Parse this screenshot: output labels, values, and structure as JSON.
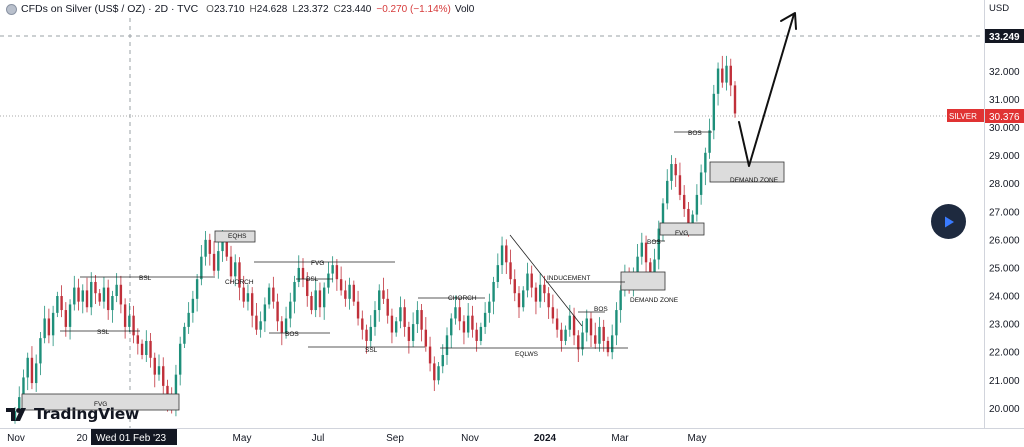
{
  "header": {
    "symbol": "CFDs on Silver (US$ / OZ) · 2D · TVC",
    "open_label": "O",
    "open": "23.710",
    "high_label": "H",
    "high": "24.628",
    "low_label": "L",
    "low": "23.372",
    "close_label": "C",
    "close": "23.440",
    "change": "−0.270 (−1.14%)",
    "volume": "Vol0"
  },
  "price_axis": {
    "currency": "USD",
    "crosshair_price": "33.249",
    "symbol_tag": "SILVER",
    "last_price": "30.376"
  },
  "time_axis": {
    "crosshair_label": "Wed 01 Feb '23"
  },
  "logo": {
    "text": "TradingView"
  },
  "colors": {
    "up": "#1e8f7a",
    "down": "#c0303a",
    "zone_fill": "#dcdcdc",
    "zone_stroke": "#333333",
    "last_price": "#e03333"
  },
  "chart_data": {
    "type": "candlestick",
    "ylim": [
      19.3,
      33.9
    ],
    "yticks": [
      20,
      21,
      22,
      23,
      24,
      25,
      26,
      27,
      28,
      29,
      30,
      31,
      32
    ],
    "x_ticks": [
      "Nov",
      "20",
      "May",
      "Jul",
      "Sep",
      "Nov",
      "2024",
      "Mar",
      "May"
    ],
    "closes": [
      19.9,
      20.4,
      21.1,
      21.8,
      20.9,
      21.6,
      22.5,
      23.2,
      22.6,
      23.4,
      24.0,
      23.5,
      22.9,
      23.7,
      24.3,
      23.8,
      24.2,
      23.6,
      24.5,
      24.1,
      23.8,
      24.3,
      23.5,
      24.0,
      24.4,
      23.7,
      22.9,
      23.3,
      22.6,
      22.3,
      21.9,
      22.4,
      21.8,
      21.2,
      21.5,
      20.8,
      20.3,
      20.0,
      21.2,
      22.3,
      22.9,
      23.4,
      23.9,
      24.6,
      25.4,
      26.0,
      25.5,
      24.9,
      25.6,
      26.1,
      25.4,
      24.7,
      25.2,
      24.3,
      23.8,
      24.1,
      23.3,
      22.8,
      23.1,
      23.7,
      24.3,
      23.8,
      23.1,
      22.7,
      23.2,
      23.8,
      24.5,
      25.0,
      24.6,
      24.0,
      23.5,
      24.2,
      23.6,
      24.3,
      24.8,
      25.1,
      24.6,
      24.2,
      23.9,
      24.4,
      23.8,
      23.2,
      22.8,
      22.4,
      22.9,
      23.5,
      24.2,
      23.9,
      23.3,
      22.7,
      23.1,
      23.6,
      22.9,
      22.4,
      23.0,
      23.5,
      22.8,
      22.2,
      21.6,
      21.0,
      21.5,
      21.9,
      22.6,
      23.2,
      23.6,
      23.1,
      22.7,
      23.3,
      22.8,
      22.4,
      22.9,
      23.4,
      23.8,
      24.5,
      25.1,
      25.8,
      25.2,
      24.6,
      24.1,
      23.6,
      24.2,
      24.8,
      24.3,
      23.8,
      24.4,
      24.1,
      23.6,
      23.2,
      22.8,
      22.4,
      22.8,
      23.3,
      22.6,
      22.1,
      22.7,
      23.2,
      22.6,
      22.3,
      22.9,
      22.4,
      22.0,
      22.6,
      23.5,
      24.2,
      24.7,
      24.4,
      24.8,
      25.4,
      25.9,
      25.2,
      24.6,
      25.3,
      26.4,
      27.3,
      28.1,
      28.7,
      28.3,
      27.6,
      27.1,
      26.5,
      26.9,
      27.6,
      28.4,
      29.1,
      29.9,
      31.2,
      32.1,
      31.6,
      32.2,
      31.5,
      30.5
    ],
    "annotations": {
      "levels": [
        "BSL",
        "SSL",
        "BOS",
        "FVG",
        "BSL",
        "SSL",
        "CHORCH",
        "EQLWS",
        "BOS",
        "BOS"
      ],
      "zones": [
        "FVG",
        "EQHS",
        "DEMAND ZONE",
        "FVG",
        "DEMAND ZONE"
      ],
      "other": [
        "CHORCH",
        "INDUCEMENT",
        "BOS"
      ]
    },
    "grid": false
  }
}
